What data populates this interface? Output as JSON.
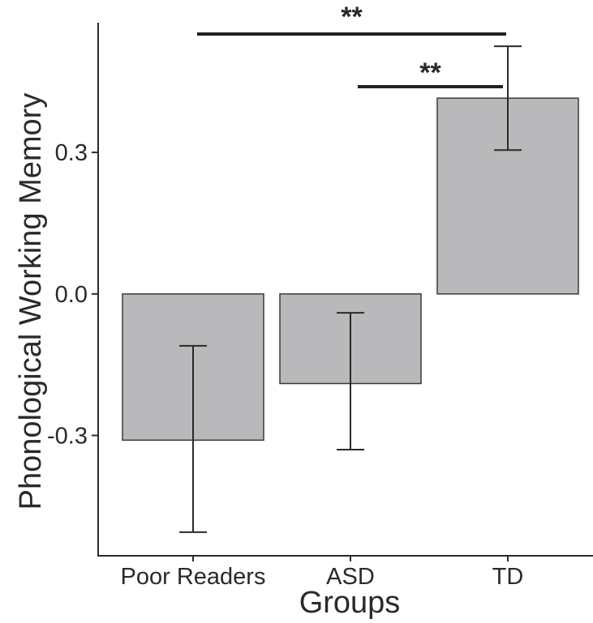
{
  "chart_data": {
    "type": "bar",
    "xlabel": "Groups",
    "ylabel": "Phonological Working Memory",
    "categories": [
      "Poor Readers",
      "ASD",
      "TD"
    ],
    "values": [
      -0.31,
      -0.19,
      0.415
    ],
    "error_low": [
      -0.505,
      -0.33,
      0.305
    ],
    "error_high": [
      -0.11,
      -0.04,
      0.525
    ],
    "ylim": [
      -0.555,
      0.575
    ],
    "yticks": [
      -0.3,
      0.0,
      0.3
    ],
    "ytick_labels": [
      "-0.3",
      "0.0",
      "0.3"
    ],
    "grid": false,
    "significance": [
      {
        "from": "Poor Readers",
        "to": "TD",
        "label": "**"
      },
      {
        "from": "ASD",
        "to": "TD",
        "label": "**"
      }
    ],
    "bar_color": "#b9b9bb"
  }
}
